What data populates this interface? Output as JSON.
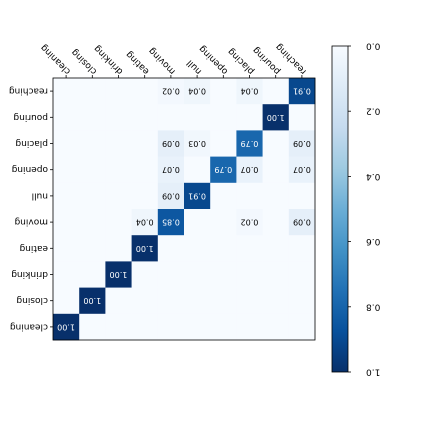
{
  "chart_data": {
    "type": "heatmap",
    "colormap": "Blues",
    "x_categories": [
      "cleaning",
      "closing",
      "drinking",
      "eating",
      "moving",
      "null",
      "opening",
      "placing",
      "pouring",
      "reaching"
    ],
    "y_categories": [
      "reaching",
      "pouring",
      "placing",
      "opening",
      "null",
      "moving",
      "eating",
      "drinking",
      "closing",
      "cleaning"
    ],
    "z": [
      [
        0,
        0,
        0,
        0,
        0.02,
        0.04,
        0,
        0.04,
        0,
        0.91
      ],
      [
        0,
        0,
        0,
        0,
        0,
        0,
        0,
        0,
        1.0,
        0
      ],
      [
        0,
        0,
        0,
        0,
        0.09,
        0.03,
        0,
        0.79,
        0,
        0.09
      ],
      [
        0,
        0,
        0,
        0,
        0.07,
        0,
        0.79,
        0.07,
        0,
        0.07
      ],
      [
        0,
        0,
        0,
        0,
        0.09,
        0.91,
        0,
        0,
        0,
        0
      ],
      [
        0,
        0,
        0,
        0.04,
        0.85,
        0,
        0,
        0.02,
        0,
        0.09
      ],
      [
        0,
        0,
        0,
        1.0,
        0,
        0,
        0,
        0,
        0,
        0
      ],
      [
        0,
        0,
        1.0,
        0,
        0,
        0,
        0,
        0,
        0,
        0
      ],
      [
        0,
        1.0,
        0,
        0,
        0,
        0,
        0,
        0,
        0,
        0
      ],
      [
        1.0,
        0,
        0,
        0,
        0,
        0,
        0,
        0,
        0,
        0
      ]
    ],
    "value_labels": [
      [
        null,
        null,
        null,
        null,
        "0.02",
        "0.04",
        null,
        "0.04",
        null,
        "0.91"
      ],
      [
        null,
        null,
        null,
        null,
        null,
        null,
        null,
        null,
        "1.00",
        null
      ],
      [
        null,
        null,
        null,
        null,
        "0.09",
        "0.03",
        null,
        "0.79",
        null,
        "0.09"
      ],
      [
        null,
        null,
        null,
        null,
        "0.07",
        null,
        "0.79",
        "0.07",
        null,
        "0.07"
      ],
      [
        null,
        null,
        null,
        null,
        "0.09",
        "0.91",
        null,
        null,
        null,
        null
      ],
      [
        null,
        null,
        null,
        "0.04",
        "0.85",
        null,
        null,
        "0.02",
        null,
        "0.09"
      ],
      [
        null,
        null,
        null,
        "1.00",
        null,
        null,
        null,
        null,
        null,
        null
      ],
      [
        null,
        null,
        "1.00",
        null,
        null,
        null,
        null,
        null,
        null,
        null
      ],
      [
        null,
        "1.00",
        null,
        null,
        null,
        null,
        null,
        null,
        null,
        null
      ],
      [
        "1.00",
        null,
        null,
        null,
        null,
        null,
        null,
        null,
        null,
        null
      ]
    ],
    "colorbar_lim": [
      0,
      1
    ],
    "colorbar_ticks": [
      {
        "value": 0,
        "label": "0.0"
      },
      {
        "value": 0.2,
        "label": "0.2"
      },
      {
        "value": 0.4,
        "label": "0.4"
      },
      {
        "value": 0.6,
        "label": "0.6"
      },
      {
        "value": 0.8,
        "label": "0.8"
      },
      {
        "value": 1,
        "label": "1.0"
      }
    ]
  }
}
